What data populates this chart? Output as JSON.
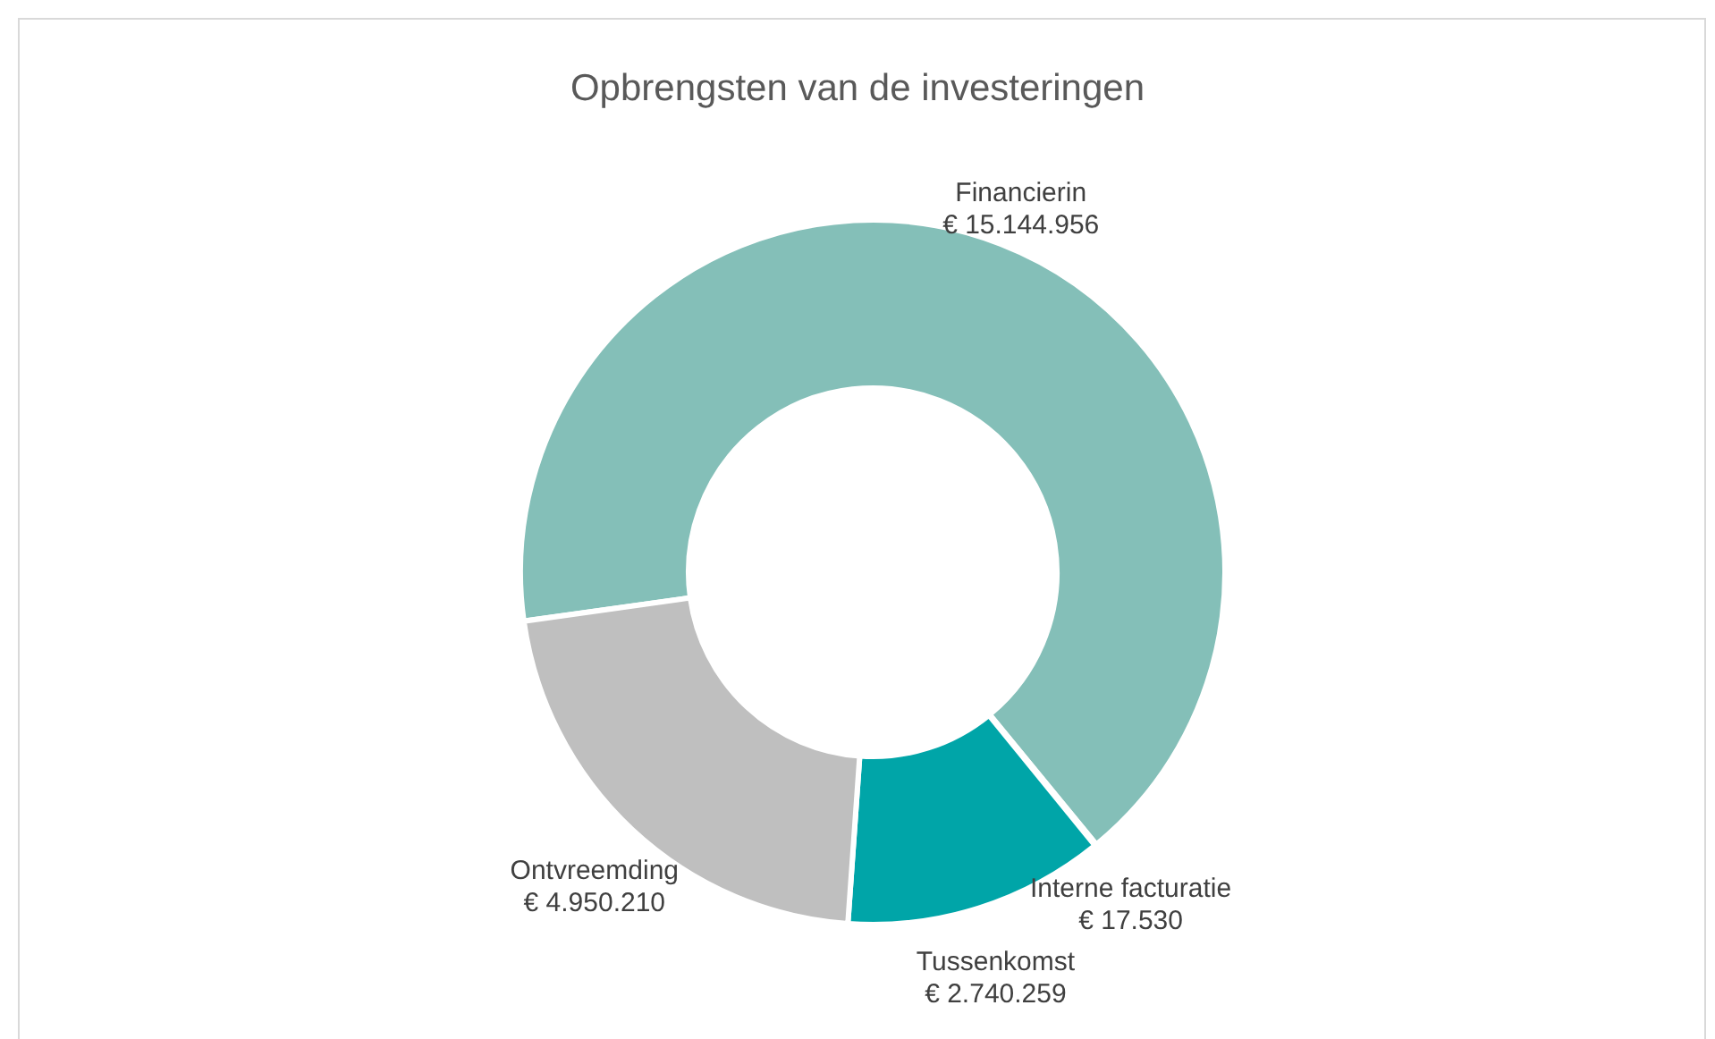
{
  "chart_data": {
    "type": "donut",
    "title": "Opbrengsten van de investeringen",
    "categories": [
      "Financierin",
      "Interne facturatie",
      "Tussenkomst",
      "Ontvreemding"
    ],
    "values": [
      15144956,
      17530,
      2740259,
      4950210
    ],
    "value_labels": [
      "€ 15.144.956",
      "€ 17.530",
      "€ 2.740.259",
      "€ 4.950.210"
    ],
    "colors": [
      "#84bfb8",
      "#7f7f7f",
      "#00a5a8",
      "#bfbfbf"
    ],
    "legend": false
  }
}
